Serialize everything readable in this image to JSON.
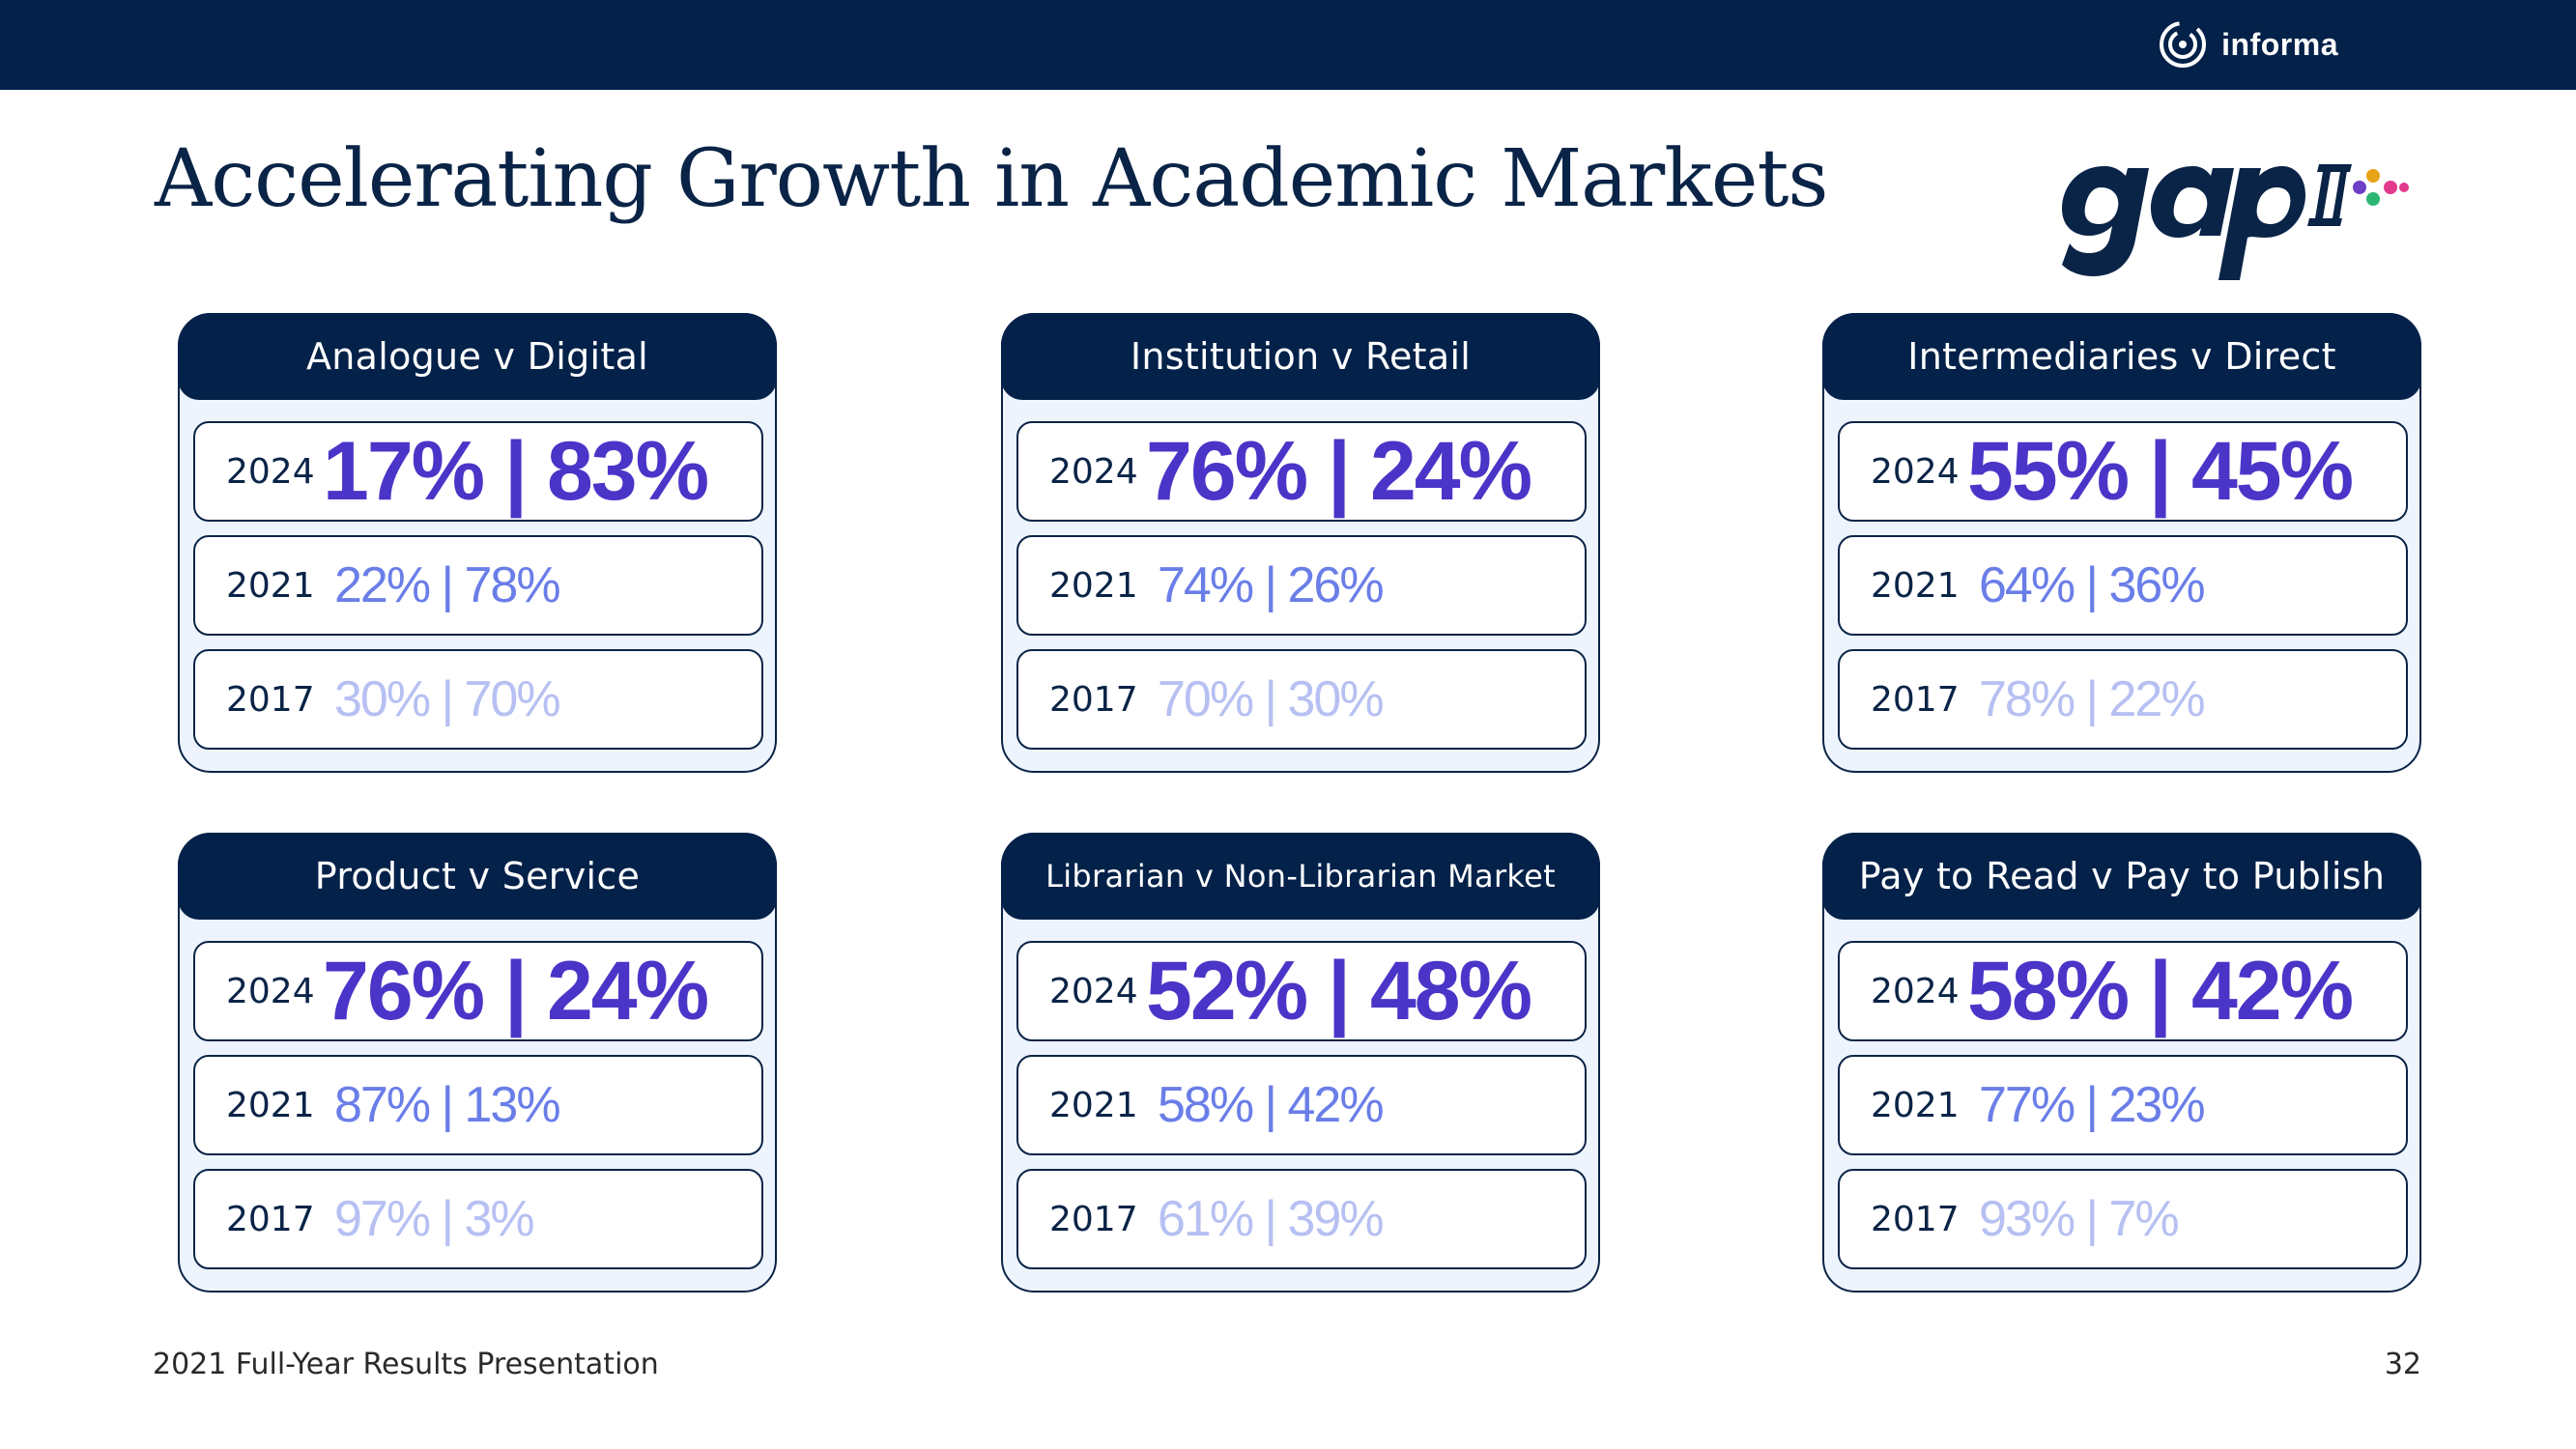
{
  "header": {
    "brand": "informa",
    "icons": [
      "informa-logo-icon",
      "gap-ii-logo-icon"
    ]
  },
  "title": "Accelerating Growth in Academic Markets",
  "cards": [
    {
      "title": "Analogue v Digital",
      "rows": [
        {
          "year": "2024",
          "value": "17% | 83%"
        },
        {
          "year": "2021",
          "value": "22% | 78%"
        },
        {
          "year": "2017",
          "value": "30% | 70%"
        }
      ]
    },
    {
      "title": "Institution v Retail",
      "rows": [
        {
          "year": "2024",
          "value": "76% | 24%"
        },
        {
          "year": "2021",
          "value": "74% | 26%"
        },
        {
          "year": "2017",
          "value": "70% | 30%"
        }
      ]
    },
    {
      "title": "Intermediaries v Direct",
      "rows": [
        {
          "year": "2024",
          "value": "55% | 45%"
        },
        {
          "year": "2021",
          "value": "64% | 36%"
        },
        {
          "year": "2017",
          "value": "78% | 22%"
        }
      ]
    },
    {
      "title": "Product v Service",
      "rows": [
        {
          "year": "2024",
          "value": "76% | 24%"
        },
        {
          "year": "2021",
          "value": "87% | 13%"
        },
        {
          "year": "2017",
          "value": "97% | 3%"
        }
      ]
    },
    {
      "title": "Librarian v Non-Librarian Market",
      "rows": [
        {
          "year": "2024",
          "value": "52% | 48%"
        },
        {
          "year": "2021",
          "value": "58% | 42%"
        },
        {
          "year": "2017",
          "value": "61% | 39%"
        }
      ]
    },
    {
      "title": "Pay to Read v Pay to Publish",
      "rows": [
        {
          "year": "2024",
          "value": "58% | 42%"
        },
        {
          "year": "2021",
          "value": "77% | 23%"
        },
        {
          "year": "2017",
          "value": "93% | 7%"
        }
      ]
    }
  ],
  "footer": {
    "left": "2021 Full-Year Results Presentation",
    "page_number": "32"
  },
  "colors": {
    "navy": "#032149",
    "accent_2024": "#4a35c8",
    "accent_2021": "#6a7ee8",
    "accent_2017": "#b7c0f2",
    "card_bg": "#eef4fd"
  }
}
